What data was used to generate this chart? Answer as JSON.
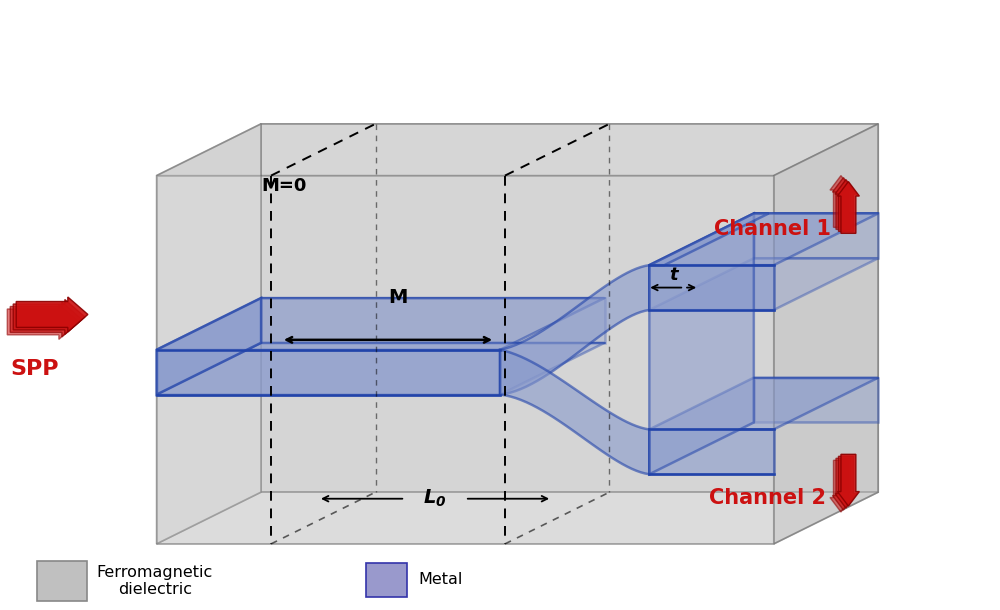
{
  "fig_width": 10.0,
  "fig_height": 6.1,
  "dpi": 100,
  "bg_color": "#ffffff",
  "metal_fill": "#8899cc",
  "metal_fill_alpha": 0.6,
  "metal_edge": "#2244aa",
  "metal_edge_width": 1.8,
  "red_color": "#cc1111",
  "channel1_label": "Channel 1",
  "channel2_label": "Channel 2",
  "spp_label": "SPP",
  "m0_label": "M=0",
  "m_label": "M",
  "t_label": "t",
  "legend_ferro": "Ferromagnetic\ndielectric",
  "legend_metal": "Metal",
  "ferro_swatch_color": "#c0c0c0",
  "metal_swatch_color": "#9999cc",
  "box_gray_top": "#d2d2d2",
  "box_gray_front": "#c8c8c8",
  "box_gray_side": "#bebebe",
  "box_edge": "#666666"
}
